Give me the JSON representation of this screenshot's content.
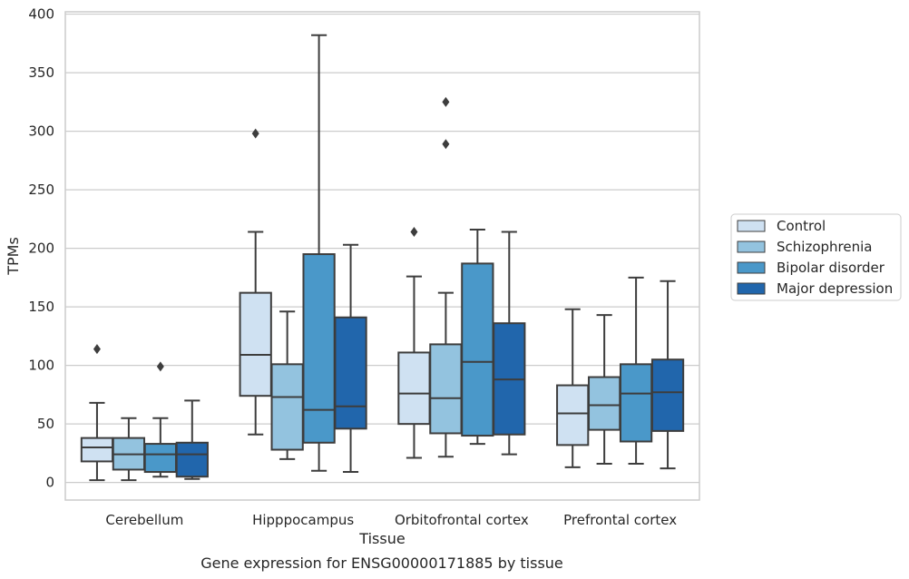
{
  "chart_data": {
    "type": "box",
    "caption": "Gene expression for ENSG00000171885 by tissue",
    "xlabel": "Tissue",
    "ylabel": "TPMs",
    "ylim": [
      -15,
      402
    ],
    "yticks": [
      0,
      50,
      100,
      150,
      200,
      250,
      300,
      350,
      400
    ],
    "grid": "horizontal",
    "legend_position": "right",
    "categories": [
      "Cerebellum",
      "Hipppocampus",
      "Orbitofrontal cortex",
      "Prefrontal cortex"
    ],
    "series": [
      {
        "name": "Control",
        "color": "#cfe1f2",
        "boxes": [
          {
            "whislo": 2,
            "q1": 18,
            "med": 30,
            "q3": 38,
            "whishi": 68,
            "fliers": [
              114
            ]
          },
          {
            "whislo": 41,
            "q1": 74,
            "med": 109,
            "q3": 162,
            "whishi": 214,
            "fliers": [
              298
            ]
          },
          {
            "whislo": 21,
            "q1": 50,
            "med": 76,
            "q3": 111,
            "whishi": 176,
            "fliers": [
              214
            ]
          },
          {
            "whislo": 13,
            "q1": 32,
            "med": 59,
            "q3": 83,
            "whishi": 148,
            "fliers": []
          }
        ]
      },
      {
        "name": "Schizophrenia",
        "color": "#93c3df",
        "boxes": [
          {
            "whislo": 2,
            "q1": 11,
            "med": 24,
            "q3": 38,
            "whishi": 55,
            "fliers": []
          },
          {
            "whislo": 20,
            "q1": 28,
            "med": 73,
            "q3": 101,
            "whishi": 146,
            "fliers": []
          },
          {
            "whislo": 22,
            "q1": 42,
            "med": 72,
            "q3": 118,
            "whishi": 162,
            "fliers": [
              289,
              325
            ]
          },
          {
            "whislo": 16,
            "q1": 45,
            "med": 66,
            "q3": 90,
            "whishi": 143,
            "fliers": []
          }
        ]
      },
      {
        "name": "Bipolar disorder",
        "color": "#4a98c9",
        "boxes": [
          {
            "whislo": 5,
            "q1": 9,
            "med": 24,
            "q3": 33,
            "whishi": 55,
            "fliers": [
              99
            ]
          },
          {
            "whislo": 10,
            "q1": 34,
            "med": 62,
            "q3": 195,
            "whishi": 382,
            "fliers": []
          },
          {
            "whislo": 33,
            "q1": 40,
            "med": 103,
            "q3": 187,
            "whishi": 216,
            "fliers": []
          },
          {
            "whislo": 16,
            "q1": 35,
            "med": 76,
            "q3": 101,
            "whishi": 175,
            "fliers": []
          }
        ]
      },
      {
        "name": "Major depression",
        "color": "#2166ac",
        "boxes": [
          {
            "whislo": 3,
            "q1": 5,
            "med": 24,
            "q3": 34,
            "whishi": 70,
            "fliers": []
          },
          {
            "whislo": 9,
            "q1": 46,
            "med": 65,
            "q3": 141,
            "whishi": 203,
            "fliers": []
          },
          {
            "whislo": 24,
            "q1": 41,
            "med": 88,
            "q3": 136,
            "whishi": 214,
            "fliers": []
          },
          {
            "whislo": 12,
            "q1": 44,
            "med": 77,
            "q3": 105,
            "whishi": 172,
            "fliers": []
          }
        ]
      }
    ]
  }
}
